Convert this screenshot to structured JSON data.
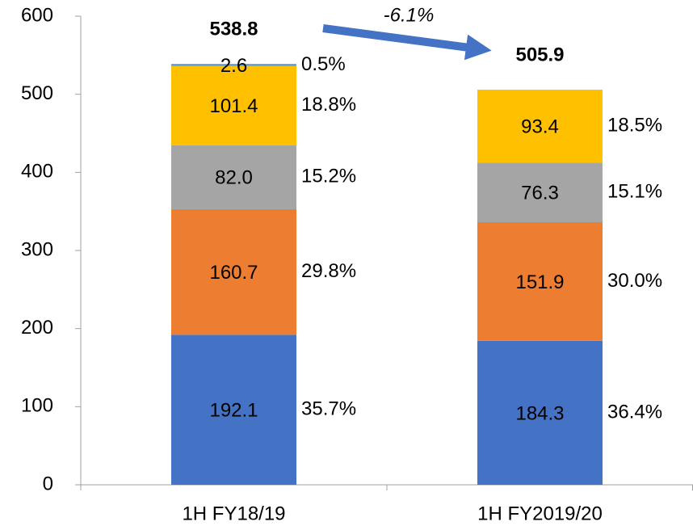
{
  "chart_data": {
    "type": "stacked_bar",
    "categories": [
      "1H FY18/19",
      "1H FY2019/20"
    ],
    "series": [
      {
        "color": "#4472c4",
        "values": [
          192.1,
          184.3
        ],
        "percent_labels": [
          "35.7%",
          "36.4%"
        ]
      },
      {
        "color": "#ed7d31",
        "values": [
          160.7,
          151.9
        ],
        "percent_labels": [
          "29.8%",
          "30.0%"
        ]
      },
      {
        "color": "#a5a5a5",
        "values": [
          82.0,
          76.3
        ],
        "value_labels": [
          "82.0",
          "76.3"
        ],
        "percent_labels": [
          "15.2%",
          "15.1%"
        ]
      },
      {
        "color": "#ffc000",
        "values": [
          101.4,
          93.4
        ],
        "percent_labels": [
          "18.8%",
          "18.5%"
        ]
      },
      {
        "color": "#5b9bd5",
        "values": [
          2.6,
          null
        ],
        "percent_labels": [
          "0.5%",
          null
        ]
      }
    ],
    "totals": [
      538.8,
      505.9
    ],
    "annotation": "-6.1%",
    "ylim": [
      0,
      600
    ],
    "yticks": [
      0,
      100,
      200,
      300,
      400,
      500,
      600
    ],
    "grid": false
  }
}
